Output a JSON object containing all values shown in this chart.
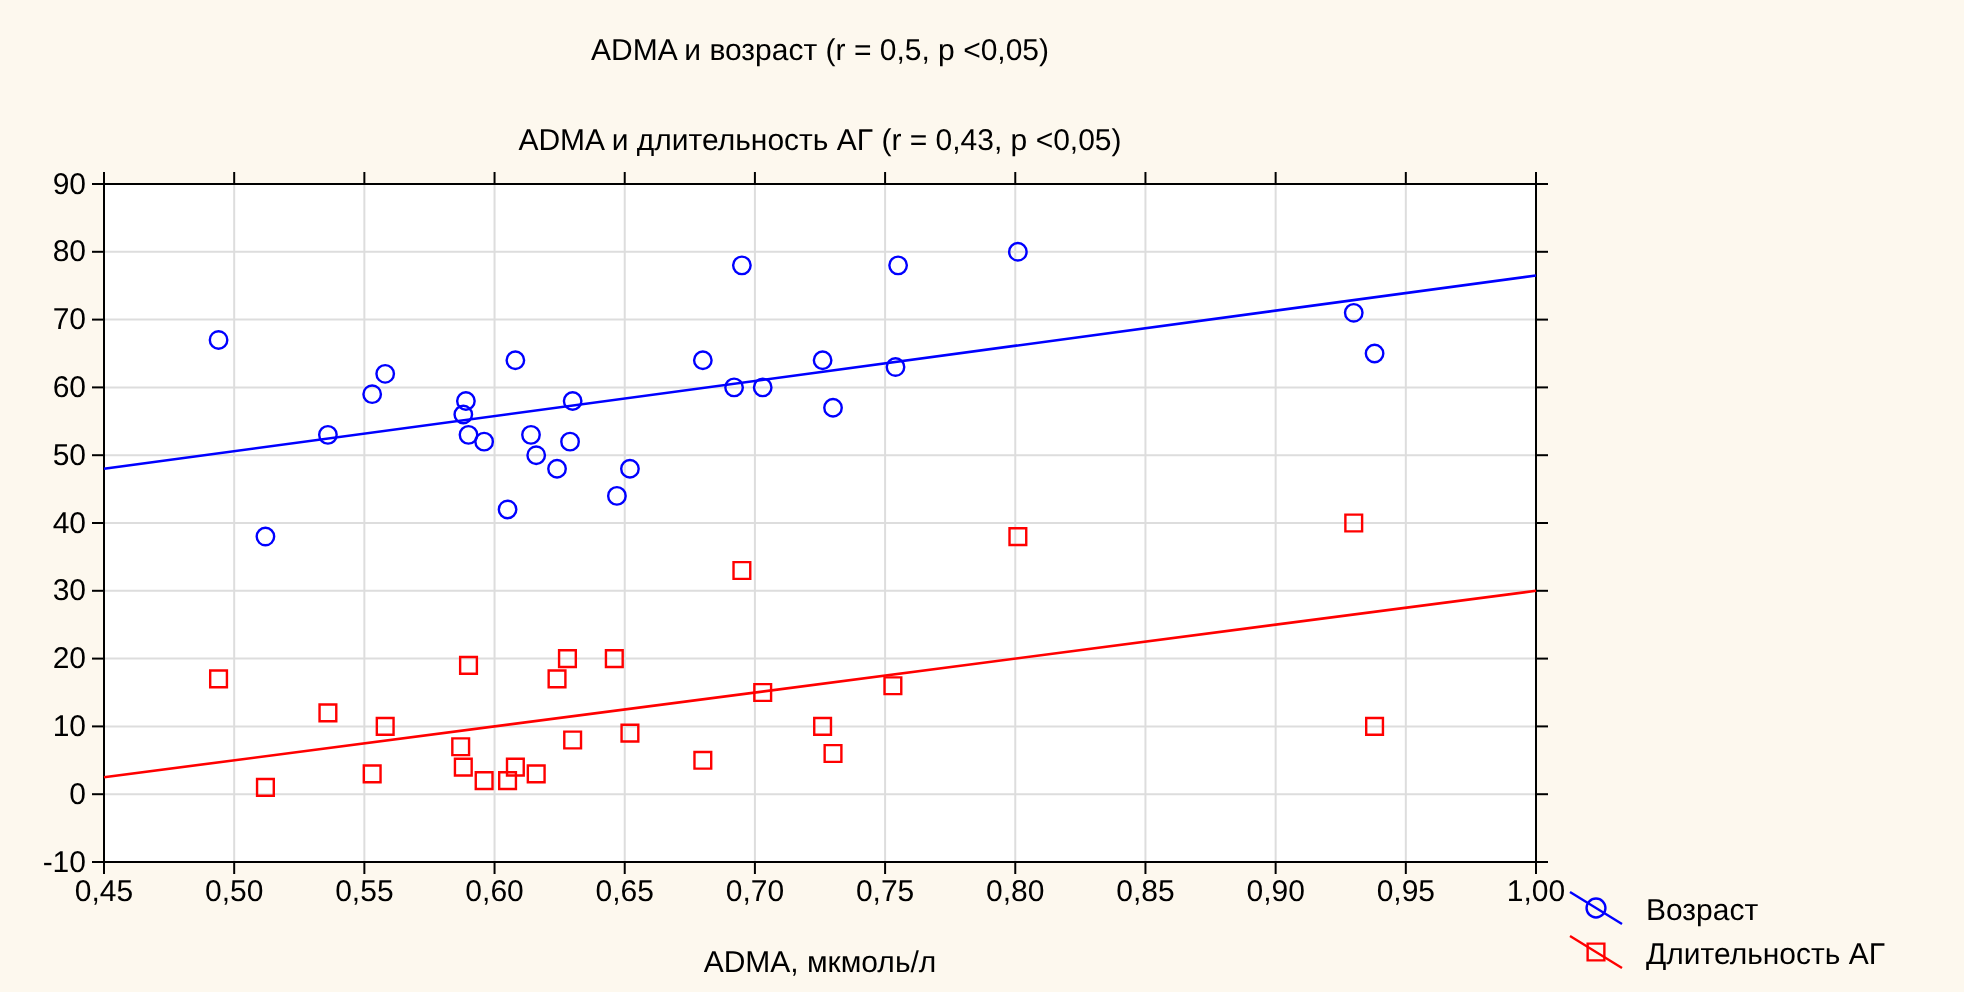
{
  "chart_data": {
    "type": "scatter",
    "title": "ADMA и возраст (r = 0,5, p <0,05)",
    "subtitle": "ADMA и длительность АГ (r = 0,43, p <0,05)",
    "xlabel": "ADMA, мкмоль/л",
    "xlim": [
      0.45,
      1.0
    ],
    "xticks": [
      {
        "value": 0.45,
        "label": "0,45"
      },
      {
        "value": 0.5,
        "label": "0,50"
      },
      {
        "value": 0.55,
        "label": "0,55"
      },
      {
        "value": 0.6,
        "label": "0,60"
      },
      {
        "value": 0.65,
        "label": "0,65"
      },
      {
        "value": 0.7,
        "label": "0,70"
      },
      {
        "value": 0.75,
        "label": "0,75"
      },
      {
        "value": 0.8,
        "label": "0,80"
      },
      {
        "value": 0.85,
        "label": "0,85"
      },
      {
        "value": 0.9,
        "label": "0,90"
      },
      {
        "value": 0.95,
        "label": "0,95"
      },
      {
        "value": 1.0,
        "label": "1,00"
      }
    ],
    "ylim": [
      -10,
      90
    ],
    "yticks": [
      -10,
      0,
      10,
      20,
      30,
      40,
      50,
      60,
      70,
      80,
      90
    ],
    "grid": true,
    "legend": "bottom right",
    "series": [
      {
        "name": "Возраст",
        "type": "scatter",
        "marker": "circle",
        "color": "#0000ff",
        "x": [
          0.494,
          0.512,
          0.536,
          0.553,
          0.558,
          0.588,
          0.589,
          0.59,
          0.596,
          0.605,
          0.608,
          0.614,
          0.616,
          0.624,
          0.629,
          0.63,
          0.647,
          0.652,
          0.68,
          0.692,
          0.695,
          0.703,
          0.726,
          0.73,
          0.754,
          0.755,
          0.801,
          0.93,
          0.938
        ],
        "values": [
          67,
          38,
          53,
          59,
          62,
          56,
          58,
          53,
          52,
          42,
          64,
          53,
          50,
          48,
          52,
          58,
          44,
          48,
          64,
          60,
          78,
          60,
          64,
          57,
          63,
          78,
          80,
          71,
          65
        ]
      },
      {
        "name": "Длительность АГ",
        "type": "scatter",
        "marker": "square",
        "color": "#ff0000",
        "x": [
          0.494,
          0.512,
          0.536,
          0.553,
          0.558,
          0.587,
          0.588,
          0.59,
          0.596,
          0.605,
          0.608,
          0.616,
          0.624,
          0.628,
          0.63,
          0.646,
          0.652,
          0.68,
          0.695,
          0.703,
          0.726,
          0.73,
          0.753,
          0.801,
          0.93,
          0.938
        ],
        "values": [
          17,
          1,
          12,
          3,
          10,
          7,
          4,
          19,
          2,
          2,
          4,
          3,
          17,
          20,
          8,
          20,
          9,
          5,
          33,
          15,
          10,
          6,
          16,
          38,
          40,
          10
        ]
      },
      {
        "type": "line",
        "marker": "none",
        "color": "#0000ff",
        "x": [
          0.45,
          1.0
        ],
        "values": [
          48,
          76.5
        ]
      },
      {
        "type": "line",
        "marker": "none",
        "color": "#ff0000",
        "x": [
          0.45,
          1.0
        ],
        "values": [
          2.5,
          30
        ]
      }
    ]
  }
}
